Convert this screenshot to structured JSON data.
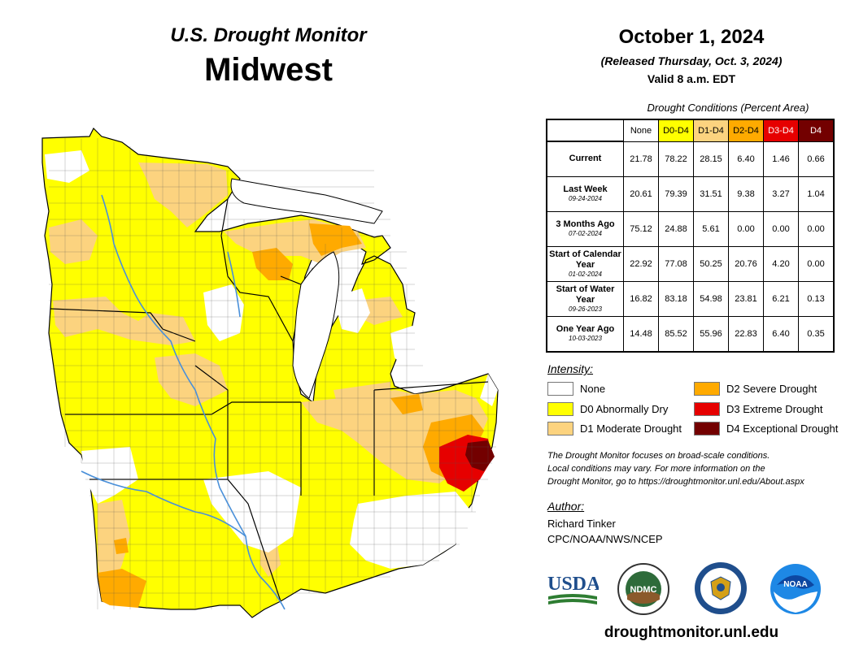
{
  "header": {
    "title": "U.S. Drought Monitor",
    "region": "Midwest",
    "date": "October 1, 2024",
    "released": "(Released Thursday, Oct. 3, 2024)",
    "valid": "Valid 8 a.m. EDT"
  },
  "conditions": {
    "title": "Drought Conditions (Percent Area)",
    "columns": [
      "None",
      "D0-D4",
      "D1-D4",
      "D2-D4",
      "D3-D4",
      "D4"
    ],
    "column_colors": [
      "#ffffff",
      "#ffff00",
      "#fcd37f",
      "#ffaa00",
      "#e60000",
      "#730000"
    ],
    "rows": [
      {
        "label": "Current",
        "date": "",
        "values": [
          "21.78",
          "78.22",
          "28.15",
          "6.40",
          "1.46",
          "0.66"
        ]
      },
      {
        "label": "Last Week",
        "date": "09-24-2024",
        "values": [
          "20.61",
          "79.39",
          "31.51",
          "9.38",
          "3.27",
          "1.04"
        ]
      },
      {
        "label": "3 Months Ago",
        "date": "07-02-2024",
        "values": [
          "75.12",
          "24.88",
          "5.61",
          "0.00",
          "0.00",
          "0.00"
        ]
      },
      {
        "label": "Start of Calendar Year",
        "date": "01-02-2024",
        "values": [
          "22.92",
          "77.08",
          "50.25",
          "20.76",
          "4.20",
          "0.00"
        ]
      },
      {
        "label": "Start of Water Year",
        "date": "09-26-2023",
        "values": [
          "16.82",
          "83.18",
          "54.98",
          "23.81",
          "6.21",
          "0.13"
        ]
      },
      {
        "label": "One Year Ago",
        "date": "10-03-2023",
        "values": [
          "14.48",
          "85.52",
          "55.96",
          "22.83",
          "6.40",
          "0.35"
        ]
      }
    ]
  },
  "intensity": {
    "title": "Intensity:",
    "items": [
      {
        "label": "None",
        "color": "#ffffff"
      },
      {
        "label": "D0 Abnormally Dry",
        "color": "#ffff00"
      },
      {
        "label": "D1 Moderate Drought",
        "color": "#fcd37f"
      },
      {
        "label": "D2 Severe Drought",
        "color": "#ffaa00"
      },
      {
        "label": "D3 Extreme Drought",
        "color": "#e60000"
      },
      {
        "label": "D4 Exceptional Drought",
        "color": "#730000"
      }
    ]
  },
  "note": {
    "line1": "The Drought Monitor focuses on broad-scale conditions.",
    "line2": "Local conditions may vary. For more information on the",
    "line3": "Drought Monitor, go to https://droughtmonitor.unl.edu/About.aspx"
  },
  "author": {
    "title": "Author:",
    "name": "Richard Tinker",
    "org": "CPC/NOAA/NWS/NCEP"
  },
  "logos": {
    "usda": "USDA",
    "ndmc": "NDMC",
    "noaa": "NOAA"
  },
  "website": "droughtmonitor.unl.edu",
  "map_colors": {
    "none": "#ffffff",
    "d0": "#ffff00",
    "d1": "#fcd37f",
    "d2": "#ffaa00",
    "d3": "#e60000",
    "d4": "#730000",
    "water": "#4a90d9",
    "county_line": "#333333",
    "state_line": "#000000"
  }
}
